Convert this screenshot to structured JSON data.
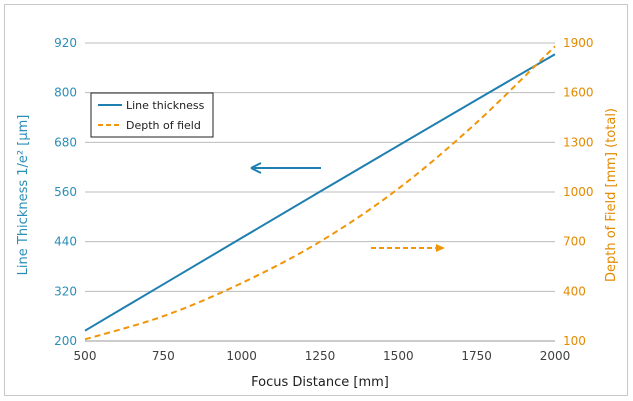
{
  "chart_data": {
    "type": "line",
    "title": "",
    "xlabel": "Focus Distance [mm]",
    "ylabel_left": "Line Thickness 1/e² [µm]",
    "ylabel_right": "Depth of Field [mm] (total)",
    "x_ticks": [
      500,
      750,
      1000,
      1250,
      1500,
      1750,
      2000
    ],
    "y_left_ticks": [
      200,
      320,
      440,
      560,
      680,
      800,
      920
    ],
    "y_right_ticks": [
      100,
      400,
      700,
      1000,
      1300,
      1600,
      1900
    ],
    "xlim": [
      500,
      2000
    ],
    "ylim_left": [
      200,
      920
    ],
    "ylim_right": [
      100,
      1900
    ],
    "grid": true,
    "legend_position": "upper-left",
    "series": [
      {
        "name": "Line thickness",
        "axis": "left",
        "style": "solid",
        "color": "#1f7fb0",
        "x": [
          500,
          750,
          1000,
          1250,
          1500,
          1750,
          2000
        ],
        "values": [
          225,
          337,
          449,
          561,
          672,
          783,
          893
        ]
      },
      {
        "name": "Depth of field",
        "axis": "right",
        "style": "dashed",
        "color": "#f0960a",
        "x": [
          500,
          750,
          1000,
          1250,
          1500,
          1750,
          2000
        ],
        "values": [
          110,
          250,
          450,
          700,
          1020,
          1420,
          1880
        ]
      }
    ],
    "annotations": [
      {
        "kind": "arrow",
        "direction": "left",
        "color": "#1f7fb0",
        "style": "solid",
        "refers_to": "Line thickness"
      },
      {
        "kind": "arrow",
        "direction": "right",
        "color": "#f0960a",
        "style": "dashed",
        "refers_to": "Depth of field"
      }
    ]
  }
}
